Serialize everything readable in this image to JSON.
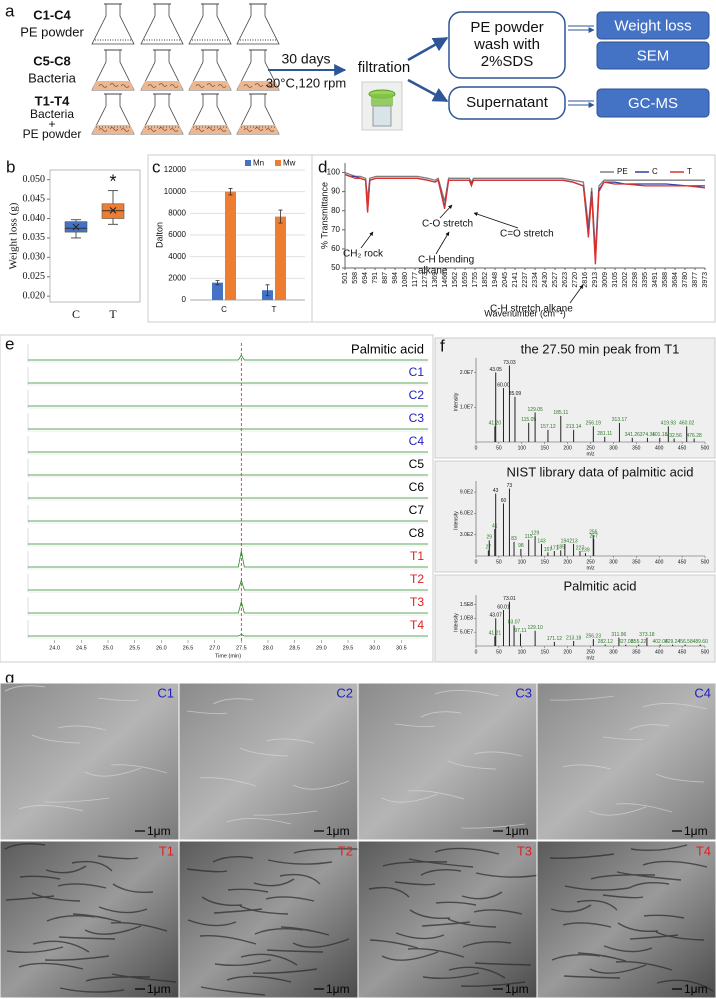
{
  "panel_a": {
    "label": "a",
    "groups": [
      {
        "name": "C1-C4",
        "desc": [
          "PE powder"
        ]
      },
      {
        "name": "C5-C8",
        "desc": [
          "Bacteria"
        ]
      },
      {
        "name": "T1-T4",
        "desc": [
          "Bacteria",
          "+",
          "PE powder"
        ]
      }
    ],
    "condition": [
      "30 days",
      "30°C,120 rpm"
    ],
    "filtration": "filtration",
    "wash": [
      "PE powder",
      "wash with",
      "2%SDS"
    ],
    "supernatant": "Supernatant",
    "outputs": [
      "Weight loss",
      "SEM",
      "GC-MS"
    ]
  },
  "chart_data": [
    {
      "type": "box",
      "panel": "b",
      "ylabel": "Weight loss (g)",
      "annotation": "*",
      "categories": [
        "C",
        "T"
      ],
      "colors": [
        "#4472c4",
        "#ed7d31"
      ],
      "min": [
        0.035,
        0.0385
      ],
      "q1": [
        0.0365,
        0.04
      ],
      "median": [
        0.0375,
        0.042
      ],
      "q3": [
        0.0392,
        0.0438
      ],
      "max": [
        0.0397,
        0.0472
      ],
      "mean": [
        0.0378,
        0.0421
      ],
      "ylim": [
        0.0185,
        0.0525
      ],
      "yticks": [
        {
          "value": 0.02,
          "label": "0.020"
        },
        {
          "value": 0.025,
          "label": "0.025"
        },
        {
          "value": 0.03,
          "label": "0.030"
        },
        {
          "value": 0.035,
          "label": "0.035"
        },
        {
          "value": 0.04,
          "label": "0.040"
        },
        {
          "value": 0.045,
          "label": "0.045"
        },
        {
          "value": 0.05,
          "label": "0.050"
        }
      ]
    },
    {
      "type": "bar",
      "panel": "c",
      "ylabel": "Dalton",
      "categories": [
        "C",
        "T"
      ],
      "series": [
        {
          "name": "Mn",
          "color": "#4472c4",
          "values": [
            1600,
            900
          ],
          "errors": [
            200,
            500
          ]
        },
        {
          "name": "Mw",
          "color": "#ed7d31",
          "values": [
            10000,
            7700
          ],
          "errors": [
            300,
            600
          ]
        }
      ],
      "ylim": [
        0,
        12000
      ],
      "yticks": [
        0,
        2000,
        4000,
        6000,
        8000,
        10000,
        12000
      ],
      "grid": true
    },
    {
      "type": "line",
      "panel": "d",
      "ylabel": "% Transmittance",
      "xlabel": "Wavenumber (cm⁻¹)",
      "x": [
        501,
        550,
        600,
        650,
        700,
        719,
        740,
        800,
        900,
        1000,
        1100,
        1200,
        1300,
        1370,
        1400,
        1462,
        1472,
        1500,
        1600,
        1700,
        1720,
        1740,
        1800,
        2000,
        2200,
        2400,
        2600,
        2700,
        2800,
        2848,
        2880,
        2916,
        2950,
        3000,
        3100,
        3200,
        3400,
        3600,
        3800,
        3973
      ],
      "series": [
        {
          "name": "PE",
          "color": "#7f7f7f",
          "values": [
            100,
            99,
            98,
            98,
            97,
            86,
            97,
            98,
            98,
            98,
            98,
            98,
            97,
            96,
            97,
            85,
            88,
            97,
            97,
            97,
            95,
            97,
            97,
            97,
            97,
            97,
            97,
            96,
            95,
            72,
            92,
            58,
            93,
            96,
            96,
            96,
            96,
            96,
            96,
            96
          ]
        },
        {
          "name": "C",
          "color": "#2f3fa8",
          "values": [
            99,
            98,
            98,
            97,
            96,
            80,
            96,
            97,
            97,
            97,
            97,
            97,
            96,
            95,
            96,
            82,
            86,
            96,
            96,
            96,
            94,
            96,
            96,
            96,
            96,
            96,
            96,
            95,
            93,
            68,
            90,
            54,
            91,
            95,
            95,
            94,
            94,
            94,
            93,
            93
          ]
        },
        {
          "name": "T",
          "color": "#e0302a",
          "values": [
            99,
            98,
            97,
            97,
            96,
            79,
            96,
            97,
            97,
            97,
            97,
            97,
            96,
            95,
            96,
            81,
            85,
            96,
            96,
            96,
            93,
            96,
            96,
            96,
            96,
            96,
            96,
            95,
            93,
            66,
            89,
            52,
            90,
            95,
            94,
            94,
            93,
            93,
            93,
            92
          ]
        }
      ],
      "annotations": [
        "CH₂ rock",
        "C-O stretch",
        "C-H bending",
        "alkane",
        "C=O stretch",
        "C-H stretch alkane"
      ],
      "xlim": [
        501,
        3973
      ],
      "xticks": [
        501,
        598,
        694,
        791,
        887,
        984,
        1080,
        1177,
        1273,
        1369,
        1466,
        1562,
        1659,
        1755,
        1852,
        1948,
        2045,
        2141,
        2237,
        2334,
        2430,
        2527,
        2623,
        2720,
        2816,
        2913,
        3009,
        3105,
        3202,
        3298,
        3395,
        3491,
        3588,
        3684,
        3780,
        3877,
        3973
      ],
      "ylim": [
        50,
        105
      ],
      "yticks": [
        50,
        60,
        70,
        80,
        90,
        100
      ]
    },
    {
      "type": "chromatogram",
      "panel": "e",
      "xlabel": "Time (min)",
      "peak_x": 27.5,
      "series": [
        {
          "name": "Palmitic acid",
          "color": "#000000",
          "peak": 0.3
        },
        {
          "name": "C1",
          "color": "#2020c0",
          "peak": 0
        },
        {
          "name": "C2",
          "color": "#2020c0",
          "peak": 0
        },
        {
          "name": "C3",
          "color": "#2020c0",
          "peak": 0
        },
        {
          "name": "C4",
          "color": "#2020c0",
          "peak": 0
        },
        {
          "name": "C5",
          "color": "#000000",
          "peak": 0
        },
        {
          "name": "C6",
          "color": "#000000",
          "peak": 0
        },
        {
          "name": "C7",
          "color": "#000000",
          "peak": 0
        },
        {
          "name": "C8",
          "color": "#000000",
          "peak": 0
        },
        {
          "name": "T1",
          "color": "#e02020",
          "peak": 1
        },
        {
          "name": "T2",
          "color": "#e02020",
          "peak": 0.6
        },
        {
          "name": "T3",
          "color": "#e02020",
          "peak": 0.7
        },
        {
          "name": "T4",
          "color": "#e02020",
          "peak": 0.1
        }
      ],
      "xlim": [
        23.5,
        31.0
      ],
      "xticks": [
        {
          "value": 24,
          "label": "24.0"
        },
        24.5,
        {
          "value": 25,
          "label": "25.0"
        },
        25.5,
        {
          "value": 26,
          "label": "26.0"
        },
        26.5,
        {
          "value": 27,
          "label": "27.0"
        },
        27.5,
        {
          "value": 28,
          "label": "28.0"
        },
        28.5,
        {
          "value": 29,
          "label": "29.0"
        },
        29.5,
        {
          "value": 30,
          "label": "30.0"
        },
        30.5
      ],
      "ylim": [
        0,
        1
      ]
    },
    {
      "type": "spectrum",
      "panel": "f",
      "title": "the 27.50 min peak from T1",
      "xlabel": "m/z",
      "ylabel": "Intensity",
      "x": [
        41.2,
        43.05,
        60.0,
        73.03,
        85.09,
        115.05,
        129.05,
        157.12,
        185.11,
        213.14,
        256.19,
        281.11,
        313.17,
        341.26,
        374.31,
        401.18,
        419.93,
        432.56,
        460.02,
        476.28
      ],
      "values": [
        4500000,
        20000000,
        15500000,
        22000000,
        13000000,
        5500000,
        8500000,
        3500000,
        7500000,
        3500000,
        4500000,
        1500000,
        5500000,
        1200000,
        1200000,
        1200000,
        4500000,
        1000000,
        4500000,
        1000000
      ],
      "value_labels": [
        "41.20",
        "43.05",
        "60.00",
        "73.03",
        "85.09",
        "115.05",
        "129.05",
        "157.12",
        "185.11",
        "213.14",
        "256.19",
        "281.11",
        "313.17",
        "341.26",
        "374.31",
        "401.18",
        "419.93",
        "432.56",
        "460.02",
        "476.28"
      ],
      "xlim": [
        0,
        500
      ],
      "xticks": [
        0,
        50,
        100,
        150,
        200,
        250,
        300,
        350,
        400,
        450,
        500
      ],
      "ylim": [
        0,
        23000000
      ],
      "yticks": [
        {
          "value": 10000000,
          "label": "1.0E7"
        },
        {
          "value": 20000000,
          "label": "2.0E7"
        }
      ]
    },
    {
      "type": "spectrum",
      "title": "NIST library data of palmitic acid",
      "xlabel": "m/z",
      "ylabel": "Intensity",
      "x": [
        27,
        29,
        41,
        43,
        60,
        73,
        83,
        98,
        115,
        129,
        143,
        157,
        171,
        185,
        194,
        213,
        227,
        239,
        256,
        257
      ],
      "values": [
        80,
        220,
        380,
        880,
        740,
        950,
        200,
        100,
        230,
        280,
        170,
        50,
        70,
        80,
        170,
        170,
        70,
        40,
        290,
        240
      ],
      "xlim": [
        0,
        500
      ],
      "xticks": [
        0,
        50,
        100,
        150,
        200,
        250,
        300,
        350,
        400,
        450,
        500
      ],
      "ylim": [
        0,
        1000
      ],
      "yticks": [
        {
          "value": 300,
          "label": "3.0E2"
        },
        {
          "value": 600,
          "label": "6.0E2"
        },
        {
          "value": 900,
          "label": "9.0E2"
        }
      ]
    },
    {
      "type": "spectrum",
      "title": "Palmitic acid",
      "xlabel": "m/z",
      "ylabel": "Intensity",
      "x": [
        41.21,
        43.07,
        60.01,
        73.01,
        83.07,
        97.11,
        129.1,
        171.12,
        213.18,
        256.23,
        282.12,
        311.96,
        327.08,
        355.22,
        373.18,
        402.08,
        429.24,
        456.58,
        489.6
      ],
      "values": [
        35000000,
        100000000,
        130000000,
        160000000,
        75000000,
        45000000,
        55000000,
        15000000,
        18000000,
        25000000,
        5000000,
        30000000,
        5000000,
        5000000,
        30000000,
        5000000,
        5000000,
        5000000,
        5000000
      ],
      "value_labels": [
        "41.21",
        "43.07",
        "60.01",
        "73.01",
        "83.07",
        "97.11",
        "129.10",
        "171.12",
        "213.18",
        "256.23",
        "282.12",
        "311.96",
        "327.08",
        "355.22",
        "373.18",
        "402.08",
        "429.24",
        "456.58",
        "489.60"
      ],
      "xlim": [
        0,
        500
      ],
      "xticks": [
        0,
        50,
        100,
        150,
        200,
        250,
        300,
        350,
        400,
        450,
        500
      ],
      "ylim": [
        0,
        170000000
      ],
      "yticks": [
        {
          "value": 50000000,
          "label": "5.0E7"
        },
        {
          "value": 100000000,
          "label": "1.0E8"
        },
        {
          "value": 150000000,
          "label": "1.5E8"
        }
      ]
    }
  ],
  "panel_g": {
    "label": "g",
    "images": [
      [
        "C1",
        "C2",
        "C3",
        "C4"
      ],
      [
        "T1",
        "T2",
        "T3",
        "T4"
      ]
    ],
    "label_colors": [
      "#2020c0",
      "#e02020"
    ],
    "scale": "1μm"
  }
}
